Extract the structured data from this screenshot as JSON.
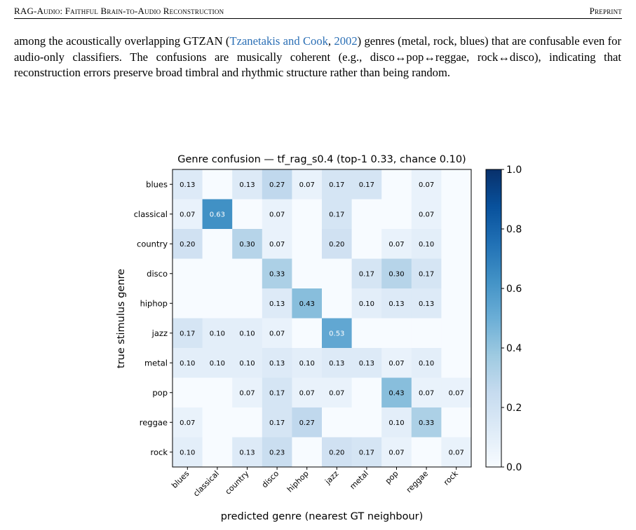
{
  "header": {
    "left": "RAG-Audio: Faithful Brain-to-Audio Reconstruction",
    "right": "Preprint"
  },
  "paragraph": {
    "part1": "among the acoustically overlapping GTZAN (",
    "cite_author": "Tzanetakis and Cook",
    "cite_sep": ", ",
    "cite_year": "2002",
    "part2": ") genres (metal, rock, blues) that are confusable even for audio-only classifiers. The confusions are musically coherent (e.g., disco↔pop↔reggae, rock↔disco), indicating that reconstruction errors preserve broad timbral and rhythmic structure rather than being random."
  },
  "chart_data": {
    "type": "heatmap",
    "title": "Genre confusion — tf_rag_s0.4  (top-1 0.33, chance 0.10)",
    "xlabel": "predicted genre (nearest GT neighbour)",
    "ylabel": "true stimulus genre",
    "x_categories": [
      "blues",
      "classical",
      "country",
      "disco",
      "hiphop",
      "jazz",
      "metal",
      "pop",
      "reggae",
      "rock"
    ],
    "y_categories": [
      "blues",
      "classical",
      "country",
      "disco",
      "hiphop",
      "jazz",
      "metal",
      "pop",
      "reggae",
      "rock"
    ],
    "values": [
      [
        0.13,
        0.0,
        0.13,
        0.27,
        0.07,
        0.17,
        0.17,
        0.0,
        0.07,
        0.0
      ],
      [
        0.07,
        0.63,
        0.0,
        0.07,
        0.0,
        0.17,
        0.0,
        0.0,
        0.07,
        0.0
      ],
      [
        0.2,
        0.0,
        0.3,
        0.07,
        0.0,
        0.2,
        0.0,
        0.07,
        0.1,
        0.0
      ],
      [
        0.0,
        0.0,
        0.0,
        0.33,
        0.0,
        0.0,
        0.17,
        0.3,
        0.17,
        0.0
      ],
      [
        0.0,
        0.0,
        0.0,
        0.13,
        0.43,
        0.0,
        0.1,
        0.13,
        0.13,
        0.0
      ],
      [
        0.17,
        0.1,
        0.1,
        0.07,
        0.0,
        0.53,
        0.0,
        0.0,
        0.0,
        0.0
      ],
      [
        0.1,
        0.1,
        0.1,
        0.13,
        0.1,
        0.13,
        0.13,
        0.07,
        0.1,
        0.0
      ],
      [
        0.0,
        0.0,
        0.07,
        0.17,
        0.07,
        0.07,
        0.0,
        0.43,
        0.07,
        0.07
      ],
      [
        0.07,
        0.0,
        0.0,
        0.17,
        0.27,
        0.0,
        0.0,
        0.1,
        0.33,
        0.0
      ],
      [
        0.1,
        0.0,
        0.13,
        0.23,
        0.0,
        0.2,
        0.17,
        0.07,
        0.0,
        0.07
      ]
    ],
    "colorbar": {
      "min": 0.0,
      "max": 1.0,
      "ticks": [
        "0.0",
        "0.2",
        "0.4",
        "0.6",
        "0.8",
        "1.0"
      ]
    },
    "colormap": "Blues"
  }
}
